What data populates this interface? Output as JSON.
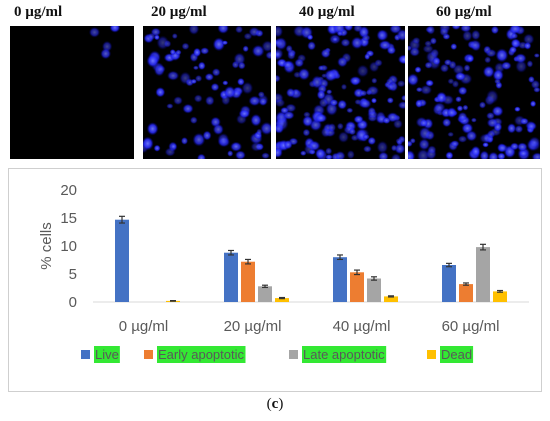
{
  "panels": [
    {
      "label": "0 µg/ml",
      "density": 4
    },
    {
      "label": "20 µg/ml",
      "density": 95
    },
    {
      "label": "40 µg/ml",
      "density": 170
    },
    {
      "label": "60 µg/ml",
      "density": 150
    }
  ],
  "colors": {
    "live": "#4472c4",
    "early": "#ed7d31",
    "late": "#a5a5a5",
    "dead": "#ffc000",
    "legend_highlight": "#33e833",
    "nuclei": "#2a2cff"
  },
  "chart_data": {
    "type": "bar",
    "title": "",
    "xlabel": "",
    "ylabel": "% cells",
    "ylim": [
      0,
      20
    ],
    "yticks": [
      0,
      5,
      10,
      15,
      20
    ],
    "grid": false,
    "legend_position": "bottom",
    "categories": [
      "0 µg/ml",
      "20 µg/ml",
      "40 µg/ml",
      "60 µg/ml"
    ],
    "series": [
      {
        "name": "Live",
        "values": [
          14.7,
          8.8,
          8.0,
          6.6
        ],
        "errors": [
          0.6,
          0.4,
          0.4,
          0.3
        ]
      },
      {
        "name": "Early apoptotic",
        "values": [
          0,
          7.2,
          5.3,
          3.2
        ],
        "errors": [
          0,
          0.4,
          0.4,
          0.2
        ]
      },
      {
        "name": "Late apoptotic",
        "values": [
          0,
          2.8,
          4.2,
          9.8
        ],
        "errors": [
          0,
          0.2,
          0.3,
          0.5
        ]
      },
      {
        "name": "Dead",
        "values": [
          0.2,
          0.7,
          1.0,
          1.9
        ],
        "errors": [
          0.05,
          0.1,
          0.1,
          0.15
        ]
      }
    ]
  },
  "caption": "c"
}
